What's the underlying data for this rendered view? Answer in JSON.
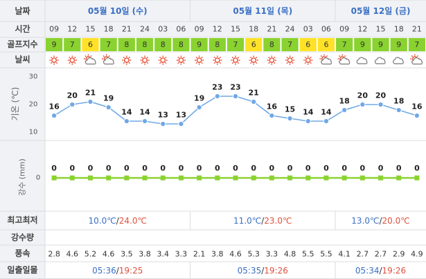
{
  "header": {
    "date_label": "날짜",
    "time_label": "시간",
    "golf_label": "골프지수",
    "weather_label": "날씨",
    "days": [
      "05월 10일 (수)",
      "05월 11일 (목)",
      "05월 12일 (금)"
    ]
  },
  "hours": [
    "09",
    "12",
    "15",
    "18",
    "21",
    "24",
    "03",
    "06",
    "09",
    "12",
    "15",
    "18",
    "21",
    "24",
    "03",
    "06",
    "09",
    "12",
    "15",
    "18",
    "21"
  ],
  "golf_index": [
    9,
    7,
    6,
    7,
    8,
    8,
    8,
    8,
    9,
    8,
    7,
    6,
    8,
    7,
    6,
    6,
    7,
    9,
    9,
    9,
    7
  ],
  "weather": [
    "sun-icon",
    "sun-icon",
    "partly-cloudy-icon",
    "partly-cloudy-icon",
    "sun-icon",
    "sun-icon",
    "sun-icon",
    "sun-icon",
    "sun-icon",
    "sun-icon",
    "sun-icon",
    "sun-icon",
    "sun-icon",
    "sun-icon",
    "sun-icon",
    "partly-cloudy-icon",
    "partly-cloudy-icon",
    "cloud-icon",
    "cloud-icon",
    "cloud-icon",
    "partly-cloudy-icon"
  ],
  "colors": {
    "golf_high": "#8ad230",
    "golf_mid": "#ffe227",
    "temp_line": "#6fa8e6",
    "precip_line": "#8ad230",
    "min_temp": "#3a6fc4",
    "max_temp": "#e0503c",
    "header_bg": "#f0f2f5",
    "day_color": "#3a6fc4"
  },
  "chart_data": [
    {
      "type": "line",
      "ylabel": "기온 (℃)",
      "ylim": [
        10,
        30
      ],
      "yticks": [
        10,
        20,
        30
      ],
      "x": [
        "09",
        "12",
        "15",
        "18",
        "21",
        "24",
        "03",
        "06",
        "09",
        "12",
        "15",
        "18",
        "21",
        "24",
        "03",
        "06",
        "09",
        "12",
        "15",
        "18",
        "21"
      ],
      "values": [
        16,
        20,
        21,
        19,
        14,
        14,
        13,
        13,
        19,
        23,
        23,
        21,
        16,
        15,
        14,
        14,
        18,
        20,
        20,
        18,
        16
      ]
    },
    {
      "type": "line",
      "ylabel": "강수 (mm)",
      "yticks": [
        0
      ],
      "x": [
        "09",
        "12",
        "15",
        "18",
        "21",
        "24",
        "03",
        "06",
        "09",
        "12",
        "15",
        "18",
        "21",
        "24",
        "03",
        "06",
        "09",
        "12",
        "15",
        "18",
        "21"
      ],
      "values": [
        0,
        0,
        0,
        0,
        0,
        0,
        0,
        0,
        0,
        0,
        0,
        0,
        0,
        0,
        0,
        0,
        0,
        0,
        0,
        0,
        0
      ]
    }
  ],
  "rows": {
    "minmax_label": "최고최저",
    "precip_label": "강수량",
    "wind_label": "풍속",
    "sun_label": "일출일몰",
    "temp_unit": "℃",
    "min_temps": [
      "10.0",
      "11.0",
      "13.0"
    ],
    "max_temps": [
      "24.0",
      "23.0",
      "20.0"
    ],
    "wind": [
      "2.8",
      "4.6",
      "5.2",
      "4.6",
      "3.5",
      "3.8",
      "3.4",
      "3.3",
      "2.1",
      "3.8",
      "4.6",
      "5.3",
      "3.3",
      "4.8",
      "5.5",
      "5.5",
      "4.1",
      "2.7",
      "2.7",
      "2.9",
      "4.9"
    ],
    "sunrise": [
      "05:36",
      "05:35",
      "05:34"
    ],
    "sunset": [
      "19:25",
      "19:26",
      "19:26"
    ]
  }
}
